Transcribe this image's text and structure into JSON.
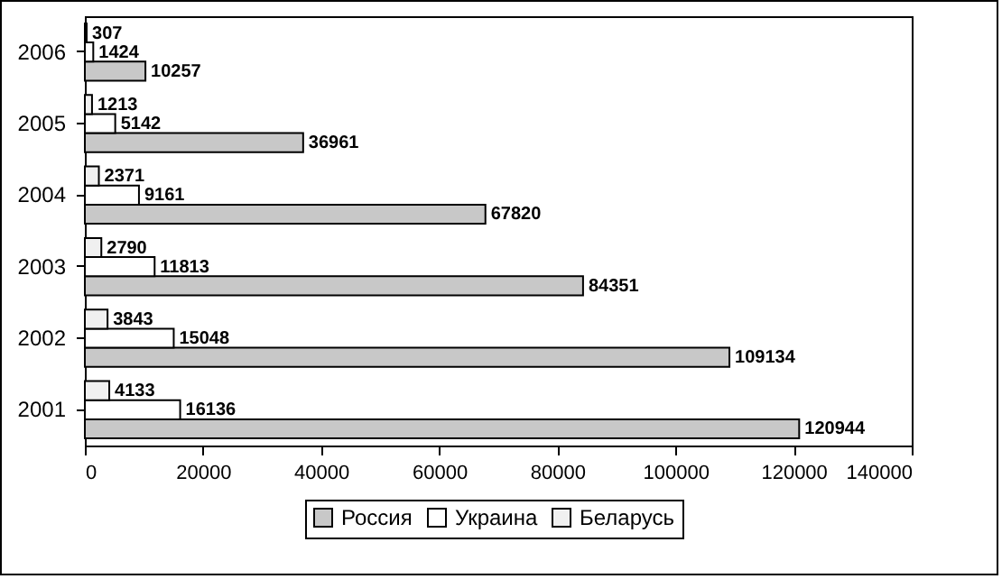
{
  "chart_data": {
    "type": "bar",
    "orientation": "horizontal",
    "categories": [
      "2006",
      "2005",
      "2004",
      "2003",
      "2002",
      "2001"
    ],
    "series": [
      {
        "name": "Россия",
        "color": "#c8c8c8",
        "values": [
          10257,
          36961,
          67820,
          84351,
          109134,
          120944
        ]
      },
      {
        "name": "Украина",
        "color": "#ffffff",
        "values": [
          1424,
          5142,
          9161,
          11813,
          15048,
          16136
        ]
      },
      {
        "name": "Беларусь",
        "color": "#f0f0f0",
        "values": [
          307,
          1213,
          2371,
          2790,
          3843,
          4133
        ]
      }
    ],
    "xlim": [
      0,
      140000
    ],
    "xticks": [
      0,
      20000,
      40000,
      60000,
      80000,
      100000,
      120000,
      140000
    ],
    "data_labels": true,
    "grid": false,
    "legend": "bottom"
  }
}
